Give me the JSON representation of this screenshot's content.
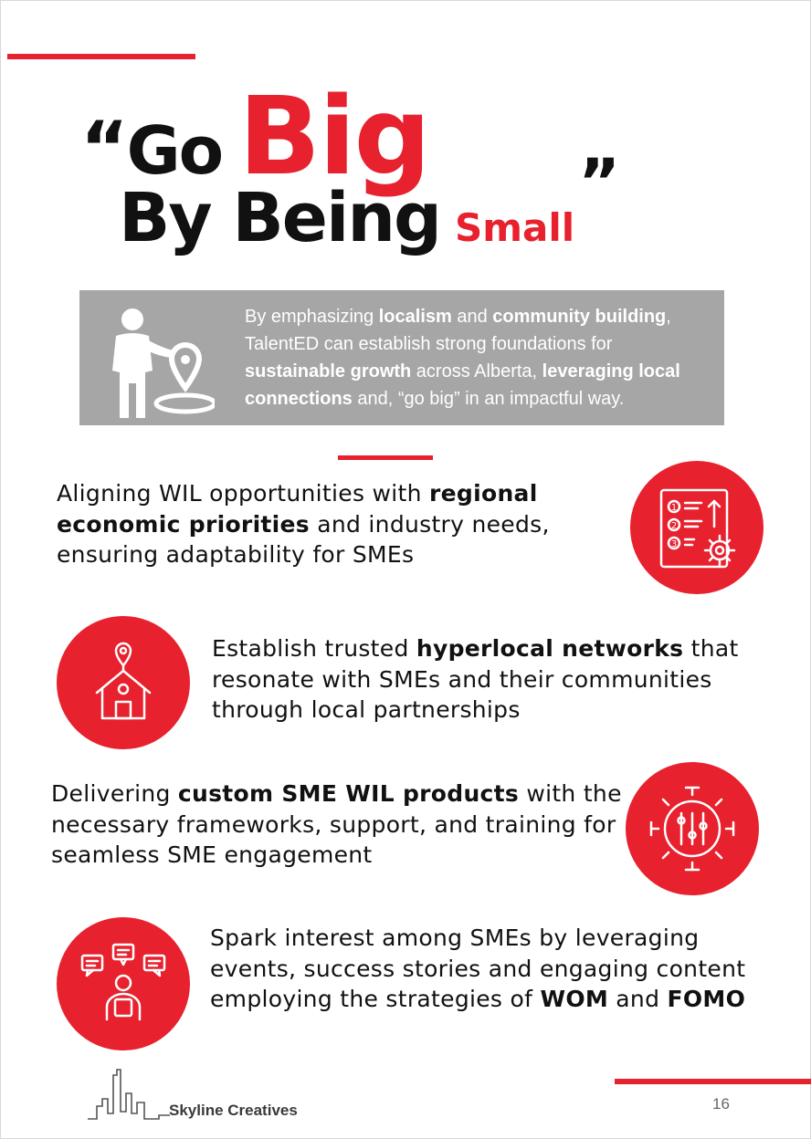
{
  "title": {
    "open_quote": "“",
    "go": "Go",
    "big": "Big",
    "by_being": "By Being",
    "small": "Small",
    "close_quote": "”"
  },
  "intro": {
    "t1": "By emphasizing ",
    "b1": "localism",
    "t2": " and ",
    "b2": "community building",
    "t3": ", TalentED can establish strong foundations for ",
    "b3": "sustainable growth",
    "t4": " across Alberta, ",
    "b4": "leveraging local connections",
    "t5": " and, “go big” in an impactful way.",
    "icon": "person-location-pin-icon"
  },
  "points": [
    {
      "t1": "Aligning WIL opportunities with ",
      "b1": "regional economic priorities",
      "t2": " and industry needs, ensuring adaptability for SMEs",
      "icon": "checklist-gear-icon"
    },
    {
      "t1": "Establish trusted ",
      "b1": "hyperlocal networks",
      "t2": " that resonate with SMEs and their communities through local partnerships",
      "icon": "house-location-pin-icon"
    },
    {
      "t1": "Delivering ",
      "b1": "custom SME WIL products",
      "t2": " with the necessary frameworks, support, and training for seamless SME engagement",
      "icon": "gear-sliders-icon"
    },
    {
      "t1": "Spark interest among SMEs by leveraging events, success stories and engaging content employing the strategies of ",
      "b1": "WOM",
      "t2": " and ",
      "b2": "FOMO",
      "icon": "person-speech-bubbles-icon"
    }
  ],
  "footer": {
    "brand": "Skyline Creatives",
    "page_number": "16",
    "logo_icon": "skyline-icon"
  },
  "colors": {
    "accent": "#e8212e",
    "box": "#a6a6a6",
    "text": "#111111"
  }
}
